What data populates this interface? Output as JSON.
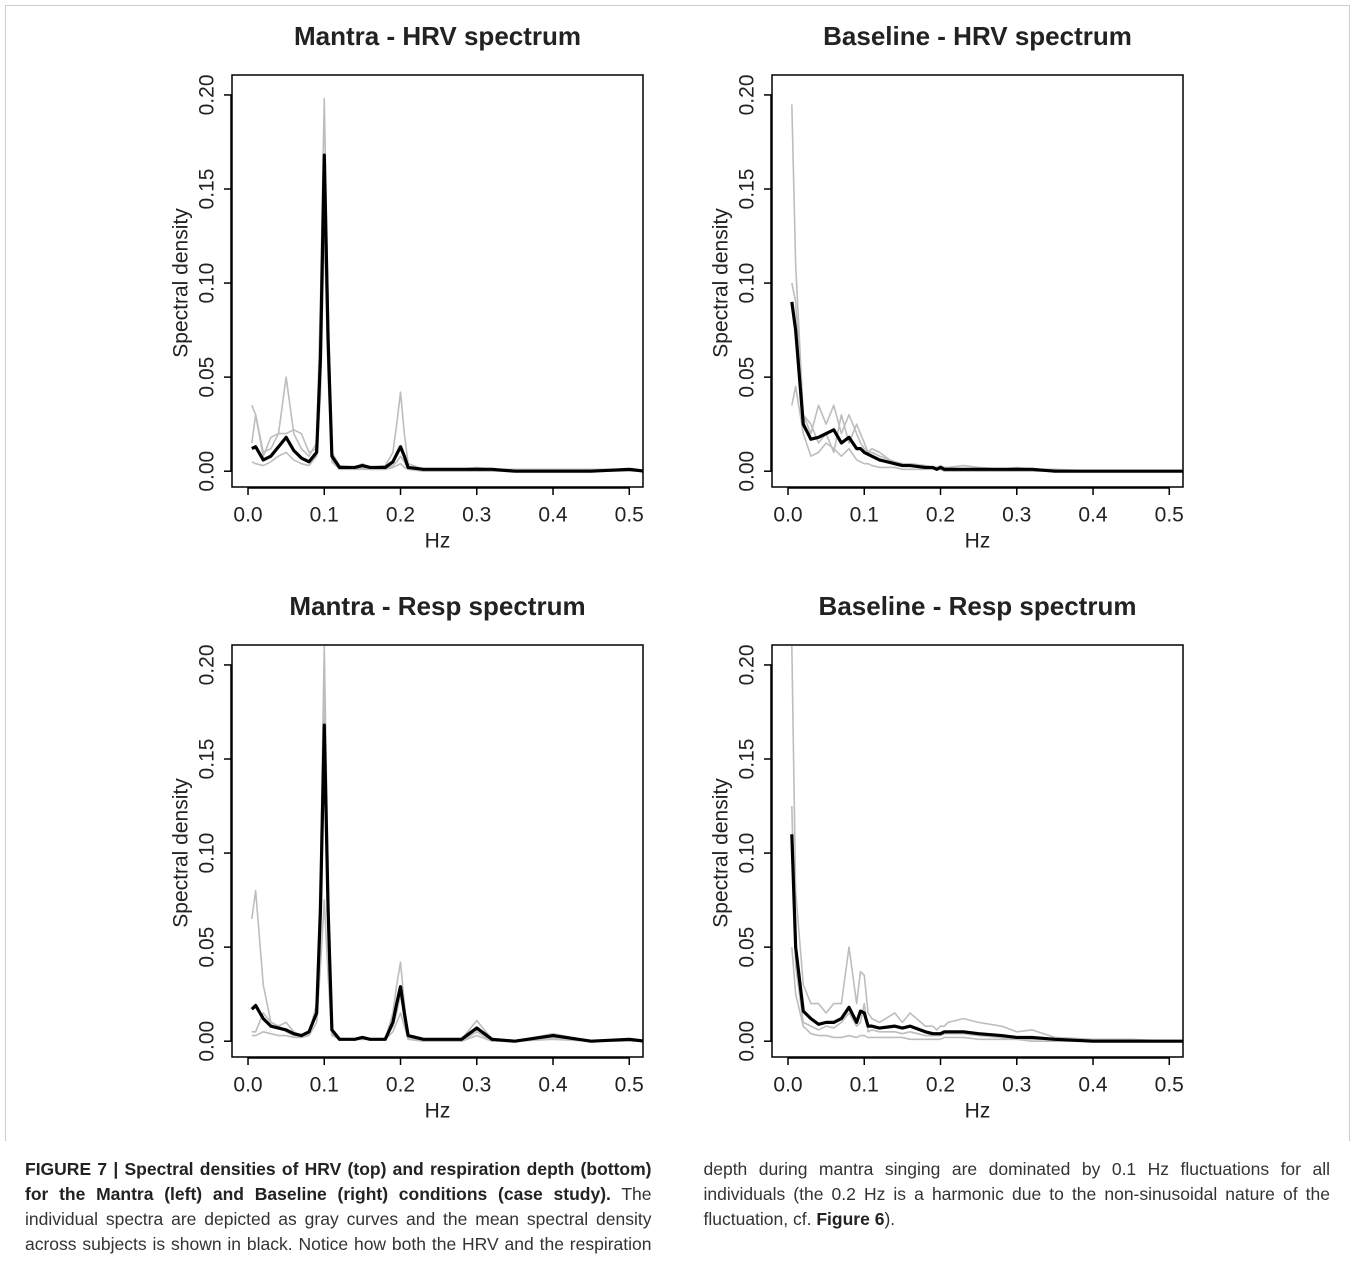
{
  "chart_data": [
    {
      "type": "line",
      "title": "Mantra - HRV spectrum",
      "x_label": "Hz",
      "y_label": "Spectral density",
      "xlim": [
        -0.021,
        0.518
      ],
      "ylim": [
        -0.0084,
        0.2106
      ],
      "xticks": [
        {
          "value": 0,
          "label": "0.0"
        },
        0.1,
        0.2,
        0.3,
        0.4,
        0.5
      ],
      "yticks": [
        {
          "value": 0,
          "label": "0.00"
        },
        0.05,
        {
          "value": 0.1,
          "label": "0.10"
        },
        0.15,
        {
          "value": 0.2,
          "label": "0.20"
        }
      ],
      "x": [
        0.005,
        0.01,
        0.02,
        0.03,
        0.04,
        0.05,
        0.06,
        0.07,
        0.08,
        0.09,
        0.095,
        0.1,
        0.105,
        0.11,
        0.12,
        0.14,
        0.15,
        0.16,
        0.18,
        0.19,
        0.195,
        0.2,
        0.205,
        0.21,
        0.23,
        0.25,
        0.28,
        0.3,
        0.32,
        0.35,
        0.4,
        0.45,
        0.5,
        0.52
      ],
      "series": [
        {
          "color": "#bdbdbd",
          "values": [
            0.035,
            0.03,
            0.01,
            0.012,
            0.02,
            0.05,
            0.02,
            0.012,
            0.008,
            0.015,
            0.09,
            0.198,
            0.09,
            0.01,
            0.003,
            0.002,
            0.004,
            0.002,
            0.003,
            0.01,
            0.025,
            0.042,
            0.02,
            0.004,
            0.001,
            0.001,
            0.001,
            0.002,
            0.001,
            0.001,
            0.001,
            0.001,
            0.001,
            0
          ]
        },
        {
          "color": "#bdbdbd",
          "values": [
            0.015,
            0.03,
            0.008,
            0.018,
            0.02,
            0.02,
            0.022,
            0.02,
            0.01,
            0.012,
            0.05,
            0.15,
            0.06,
            0.006,
            0.002,
            0.001,
            0.002,
            0.001,
            0.001,
            0.003,
            0.005,
            0.008,
            0.005,
            0.001,
            0.001,
            0.001,
            0,
            0,
            0,
            0,
            0,
            0,
            0,
            0
          ]
        },
        {
          "color": "#bdbdbd",
          "values": [
            0.005,
            0.004,
            0.003,
            0.005,
            0.008,
            0.01,
            0.006,
            0.004,
            0.003,
            0.008,
            0.04,
            0.13,
            0.05,
            0.005,
            0.001,
            0.001,
            0.001,
            0.001,
            0.001,
            0.002,
            0.003,
            0.004,
            0.002,
            0.001,
            0,
            0,
            0,
            0,
            0,
            0,
            0,
            0,
            0,
            0
          ]
        },
        {
          "color": "#000000",
          "values": [
            0.012,
            0.013,
            0.006,
            0.008,
            0.013,
            0.018,
            0.011,
            0.007,
            0.005,
            0.01,
            0.06,
            0.168,
            0.07,
            0.008,
            0.002,
            0.002,
            0.003,
            0.002,
            0.002,
            0.005,
            0.009,
            0.013,
            0.008,
            0.002,
            0.001,
            0.001,
            0.001,
            0.001,
            0.001,
            0,
            0,
            0,
            0.001,
            0
          ]
        }
      ]
    },
    {
      "type": "line",
      "title": "Baseline - HRV spectrum",
      "x_label": "Hz",
      "y_label": "Spectral density",
      "xlim": [
        -0.021,
        0.518
      ],
      "ylim": [
        -0.0084,
        0.2106
      ],
      "xticks": [
        {
          "value": 0,
          "label": "0.0"
        },
        0.1,
        0.2,
        0.3,
        0.4,
        0.5
      ],
      "yticks": [
        {
          "value": 0,
          "label": "0.00"
        },
        0.05,
        {
          "value": 0.1,
          "label": "0.10"
        },
        0.15,
        {
          "value": 0.2,
          "label": "0.20"
        }
      ],
      "x": [
        0.005,
        0.01,
        0.02,
        0.03,
        0.04,
        0.05,
        0.06,
        0.07,
        0.08,
        0.09,
        0.095,
        0.1,
        0.105,
        0.11,
        0.12,
        0.14,
        0.15,
        0.16,
        0.18,
        0.19,
        0.195,
        0.2,
        0.205,
        0.21,
        0.23,
        0.25,
        0.28,
        0.3,
        0.32,
        0.35,
        0.4,
        0.45,
        0.5,
        0.52
      ],
      "series": [
        {
          "color": "#bdbdbd",
          "values": [
            0.195,
            0.11,
            0.03,
            0.02,
            0.035,
            0.025,
            0.035,
            0.02,
            0.03,
            0.02,
            0.015,
            0.012,
            0.01,
            0.01,
            0.008,
            0.005,
            0.004,
            0.004,
            0.003,
            0.002,
            0.002,
            0.003,
            0.002,
            0.002,
            0.003,
            0.002,
            0.001,
            0.001,
            0.001,
            0.001,
            0,
            0,
            0,
            0
          ]
        },
        {
          "color": "#bdbdbd",
          "values": [
            0.1,
            0.09,
            0.03,
            0.025,
            0.015,
            0.02,
            0.01,
            0.03,
            0.015,
            0.025,
            0.02,
            0.015,
            0.01,
            0.012,
            0.01,
            0.004,
            0.003,
            0.003,
            0.002,
            0.002,
            0.001,
            0.001,
            0.001,
            0.001,
            0.001,
            0.001,
            0.001,
            0.002,
            0.001,
            0,
            0,
            0,
            0,
            0
          ]
        },
        {
          "color": "#bdbdbd",
          "values": [
            0.035,
            0.045,
            0.02,
            0.008,
            0.01,
            0.015,
            0.012,
            0.008,
            0.012,
            0.006,
            0.005,
            0.004,
            0.004,
            0.003,
            0.002,
            0.002,
            0.001,
            0.001,
            0.001,
            0.001,
            0.001,
            0.001,
            0,
            0,
            0,
            0,
            0,
            0,
            0,
            0,
            0,
            0,
            0,
            0
          ]
        },
        {
          "color": "#000000",
          "values": [
            0.09,
            0.075,
            0.025,
            0.017,
            0.018,
            0.02,
            0.022,
            0.015,
            0.018,
            0.012,
            0.012,
            0.01,
            0.009,
            0.008,
            0.006,
            0.004,
            0.003,
            0.003,
            0.002,
            0.002,
            0.001,
            0.002,
            0.001,
            0.001,
            0.001,
            0.001,
            0.001,
            0.001,
            0.001,
            0,
            0,
            0,
            0,
            0
          ]
        }
      ]
    },
    {
      "type": "line",
      "title": "Mantra - Resp spectrum",
      "x_label": "Hz",
      "y_label": "Spectral density",
      "xlim": [
        -0.021,
        0.518
      ],
      "ylim": [
        -0.0084,
        0.2106
      ],
      "xticks": [
        {
          "value": 0,
          "label": "0.0"
        },
        0.1,
        0.2,
        0.3,
        0.4,
        0.5
      ],
      "yticks": [
        {
          "value": 0,
          "label": "0.00"
        },
        0.05,
        {
          "value": 0.1,
          "label": "0.10"
        },
        0.15,
        {
          "value": 0.2,
          "label": "0.20"
        }
      ],
      "x": [
        0.005,
        0.01,
        0.02,
        0.03,
        0.04,
        0.05,
        0.06,
        0.07,
        0.08,
        0.09,
        0.095,
        0.1,
        0.105,
        0.11,
        0.12,
        0.14,
        0.15,
        0.16,
        0.18,
        0.19,
        0.195,
        0.2,
        0.205,
        0.21,
        0.23,
        0.25,
        0.28,
        0.3,
        0.32,
        0.35,
        0.4,
        0.45,
        0.5,
        0.52
      ],
      "series": [
        {
          "color": "#bdbdbd",
          "values": [
            0.065,
            0.08,
            0.03,
            0.01,
            0.008,
            0.01,
            0.005,
            0.003,
            0.004,
            0.02,
            0.09,
            0.21,
            0.09,
            0.005,
            0.001,
            0.001,
            0.002,
            0.001,
            0.001,
            0.015,
            0.03,
            0.042,
            0.02,
            0.003,
            0.001,
            0.001,
            0.001,
            0.011,
            0.001,
            0,
            0.004,
            0,
            0.001,
            0
          ]
        },
        {
          "color": "#bdbdbd",
          "values": [
            0.005,
            0.005,
            0.015,
            0.01,
            0.008,
            0.005,
            0.003,
            0.003,
            0.004,
            0.015,
            0.06,
            0.185,
            0.06,
            0.004,
            0.001,
            0.001,
            0.001,
            0.001,
            0.001,
            0.008,
            0.015,
            0.025,
            0.012,
            0.002,
            0,
            0,
            0,
            0.005,
            0,
            0,
            0.002,
            0,
            0,
            0
          ]
        },
        {
          "color": "#bdbdbd",
          "values": [
            0.003,
            0.003,
            0.005,
            0.004,
            0.003,
            0.003,
            0.002,
            0.002,
            0.003,
            0.01,
            0.04,
            0.075,
            0.035,
            0.003,
            0.001,
            0.001,
            0.001,
            0.001,
            0.001,
            0.005,
            0.01,
            0.015,
            0.008,
            0.001,
            0,
            0,
            0,
            0.003,
            0,
            0,
            0.001,
            0,
            0,
            0
          ]
        },
        {
          "color": "#000000",
          "values": [
            0.017,
            0.019,
            0.012,
            0.008,
            0.007,
            0.006,
            0.004,
            0.003,
            0.005,
            0.015,
            0.07,
            0.168,
            0.07,
            0.006,
            0.001,
            0.001,
            0.002,
            0.001,
            0.001,
            0.01,
            0.02,
            0.029,
            0.015,
            0.003,
            0.001,
            0.001,
            0.001,
            0.007,
            0.001,
            0,
            0.003,
            0,
            0.001,
            0
          ]
        }
      ]
    },
    {
      "type": "line",
      "title": "Baseline - Resp spectrum",
      "x_label": "Hz",
      "y_label": "Spectral density",
      "xlim": [
        -0.021,
        0.518
      ],
      "ylim": [
        -0.0084,
        0.2106
      ],
      "xticks": [
        {
          "value": 0,
          "label": "0.0"
        },
        0.1,
        0.2,
        0.3,
        0.4,
        0.5
      ],
      "yticks": [
        {
          "value": 0,
          "label": "0.00"
        },
        0.05,
        {
          "value": 0.1,
          "label": "0.10"
        },
        0.15,
        {
          "value": 0.2,
          "label": "0.20"
        }
      ],
      "x": [
        0.005,
        0.01,
        0.02,
        0.03,
        0.04,
        0.05,
        0.06,
        0.07,
        0.08,
        0.09,
        0.095,
        0.1,
        0.105,
        0.11,
        0.12,
        0.14,
        0.15,
        0.16,
        0.18,
        0.19,
        0.195,
        0.2,
        0.205,
        0.21,
        0.23,
        0.25,
        0.28,
        0.3,
        0.32,
        0.35,
        0.4,
        0.45,
        0.5,
        0.52
      ],
      "series": [
        {
          "color": "#bdbdbd",
          "values": [
            0.21,
            0.08,
            0.03,
            0.02,
            0.02,
            0.015,
            0.02,
            0.02,
            0.05,
            0.02,
            0.037,
            0.035,
            0.015,
            0.012,
            0.01,
            0.015,
            0.01,
            0.015,
            0.008,
            0.008,
            0.006,
            0.008,
            0.008,
            0.01,
            0.012,
            0.01,
            0.008,
            0.005,
            0.006,
            0.002,
            0.001,
            0.001,
            0,
            0
          ]
        },
        {
          "color": "#bdbdbd",
          "values": [
            0.125,
            0.04,
            0.01,
            0.008,
            0.006,
            0.008,
            0.007,
            0.01,
            0.015,
            0.008,
            0.01,
            0.02,
            0.005,
            0.006,
            0.005,
            0.005,
            0.004,
            0.005,
            0.003,
            0.003,
            0.003,
            0.003,
            0.004,
            0.004,
            0.004,
            0.003,
            0.002,
            0.001,
            0.001,
            0.001,
            0,
            0,
            0,
            0
          ]
        },
        {
          "color": "#bdbdbd",
          "values": [
            0.05,
            0.025,
            0.008,
            0.004,
            0.003,
            0.003,
            0.002,
            0.002,
            0.003,
            0.002,
            0.003,
            0.003,
            0.002,
            0.002,
            0.002,
            0.002,
            0.002,
            0.001,
            0.001,
            0.001,
            0.001,
            0.001,
            0.002,
            0.002,
            0.002,
            0.001,
            0.001,
            0.001,
            0,
            0,
            0,
            0,
            0,
            0
          ]
        },
        {
          "color": "#000000",
          "values": [
            0.11,
            0.05,
            0.016,
            0.012,
            0.009,
            0.01,
            0.01,
            0.012,
            0.018,
            0.01,
            0.016,
            0.015,
            0.008,
            0.008,
            0.007,
            0.008,
            0.007,
            0.008,
            0.005,
            0.004,
            0.004,
            0.004,
            0.005,
            0.005,
            0.005,
            0.004,
            0.003,
            0.002,
            0.002,
            0.001,
            0,
            0,
            0,
            0
          ]
        }
      ]
    }
  ],
  "caption": {
    "label": "FIGURE 7 |",
    "title": "Spectral densities of HRV (top) and respiration depth (bottom) for the Mantra (left) and Baseline (right) conditions (case study).",
    "text": "The individual spectra are depicted as gray curves and the mean spectral density across subjects is shown in black. Notice how both the HRV and the respiration depth during mantra singing are dominated by 0.1 Hz fluctuations for all individuals (the 0.2 Hz is a harmonic due to the non-sinusoidal nature of the fluctuation, cf.",
    "ref": "Figure 6",
    "end": ")."
  }
}
